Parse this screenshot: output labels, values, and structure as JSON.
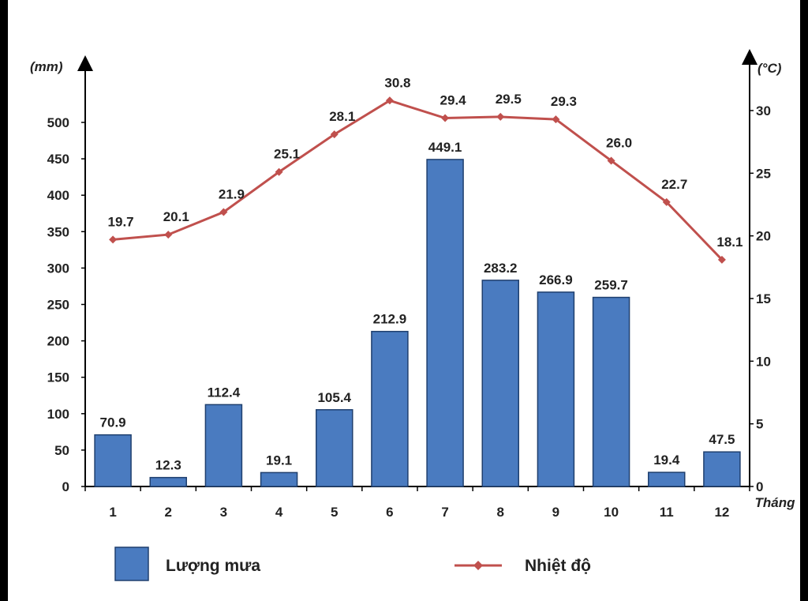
{
  "chart_data": {
    "type": "bar",
    "categories": [
      "1",
      "2",
      "3",
      "4",
      "5",
      "6",
      "7",
      "8",
      "9",
      "10",
      "11",
      "12"
    ],
    "series": [
      {
        "name": "Lượng mưa",
        "type": "bar",
        "axis": "left",
        "color": "#4a7bc0",
        "values": [
          70.9,
          12.3,
          112.4,
          19.1,
          105.4,
          212.9,
          449.1,
          283.2,
          266.9,
          259.7,
          19.4,
          47.5
        ]
      },
      {
        "name": "Nhiệt độ",
        "type": "line",
        "axis": "right",
        "color": "#c0504d",
        "values": [
          19.7,
          20.1,
          21.9,
          25.1,
          28.1,
          30.8,
          29.4,
          29.5,
          29.3,
          26.0,
          22.7,
          18.1
        ]
      }
    ],
    "y_left": {
      "label": "(mm)",
      "ticks": [
        0,
        50,
        100,
        150,
        200,
        250,
        300,
        350,
        400,
        450,
        500
      ]
    },
    "y_right": {
      "label": "(°C)",
      "ticks": [
        0,
        5,
        10,
        15,
        20,
        25,
        30
      ]
    },
    "xlabel": "Tháng",
    "legend_position": "bottom",
    "grid": false
  }
}
